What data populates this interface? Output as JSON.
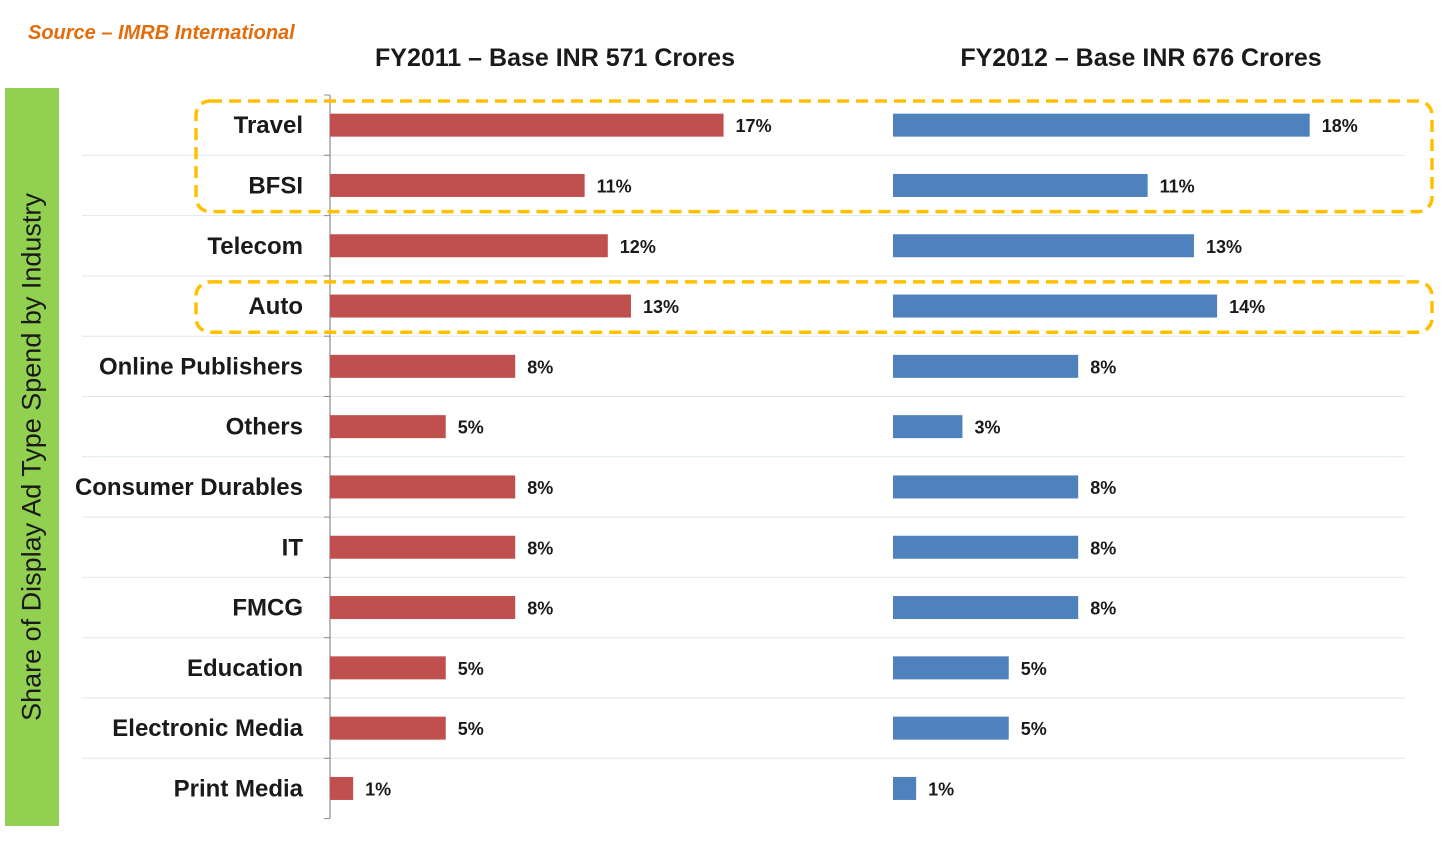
{
  "source": "Source – IMRB International",
  "chart_data": {
    "type": "bar",
    "orientation": "horizontal",
    "ylabel": "Share of Display Ad Type Spend by Industry",
    "categories": [
      "Travel",
      "BFSI",
      "Telecom",
      "Auto",
      "Online Publishers",
      "Others",
      "Consumer Durables",
      "IT",
      "FMCG",
      "Education",
      "Electronic Media",
      "Print Media"
    ],
    "panels": [
      {
        "title": "FY2011 – Base INR 571 Crores",
        "color": "#c0504d",
        "values": [
          17,
          11,
          12,
          13,
          8,
          5,
          8,
          8,
          8,
          5,
          5,
          1
        ],
        "labels": [
          "17%",
          "11%",
          "12%",
          "13%",
          "8%",
          "5%",
          "8%",
          "8%",
          "8%",
          "5%",
          "5%",
          "1%"
        ]
      },
      {
        "title": "FY2012 – Base INR 676 Crores",
        "color": "#4f81bd",
        "values": [
          18,
          11,
          13,
          14,
          8,
          3,
          8,
          8,
          8,
          5,
          5,
          1
        ],
        "labels": [
          "18%",
          "11%",
          "13%",
          "14%",
          "8%",
          "3%",
          "8%",
          "8%",
          "8%",
          "5%",
          "5%",
          "1%"
        ]
      }
    ],
    "highlight_groups": [
      [
        "Travel",
        "BFSI"
      ],
      [
        "Auto"
      ]
    ],
    "highlight_color": "#ffc000",
    "grid": true
  }
}
